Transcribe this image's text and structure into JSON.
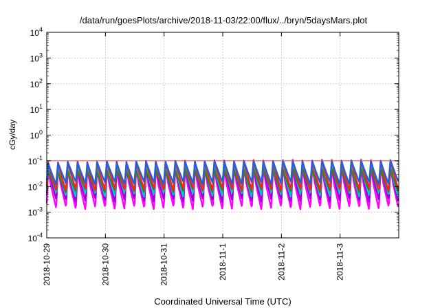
{
  "chart_data": {
    "type": "line",
    "title": "/data/run/goesPlots/archive/2018-11-03/22:00/flux/../bryn/5daysMars.plot",
    "xlabel": "Coordinated Universal Time (UTC)",
    "ylabel": "cGy/day",
    "yscale": "log",
    "ylim": [
      0.0001,
      10000
    ],
    "yticks": [
      {
        "base": "10",
        "exp": "4"
      },
      {
        "base": "10",
        "exp": "3"
      },
      {
        "base": "10",
        "exp": "2"
      },
      {
        "base": "10",
        "exp": "1"
      },
      {
        "base": "10",
        "exp": "0"
      },
      {
        "base": "10",
        "exp": "-1"
      },
      {
        "base": "10",
        "exp": "-2"
      },
      {
        "base": "10",
        "exp": "-3"
      },
      {
        "base": "10",
        "exp": "-4"
      }
    ],
    "xticks": [
      "2018-10-29",
      "2018-10-30",
      "2018-10-31",
      "2018-11-1",
      "2018-11-2",
      "2018-11-3"
    ],
    "xlim": [
      "2018-10-29",
      "2018-11-04"
    ],
    "grid": true,
    "orbit_cycles_per_day": 6,
    "reference_line": {
      "y": 0.1,
      "color": "#ff3b3b"
    },
    "series": [
      {
        "color": "#ff00ff",
        "peak": [
          0.045,
          0.06
        ],
        "trough": [
          0.0013,
          0.0018
        ]
      },
      {
        "color": "#9400d3",
        "peak": [
          0.06,
          0.08
        ],
        "trough": [
          0.0025,
          0.0035
        ]
      },
      {
        "color": "#00c8c8",
        "peak": [
          0.05,
          0.07
        ],
        "trough": [
          0.004,
          0.006
        ]
      },
      {
        "color": "#228b22",
        "peak": [
          0.035,
          0.05
        ],
        "trough": [
          0.006,
          0.008
        ]
      },
      {
        "color": "#ff2020",
        "peak": [
          0.085,
          0.11
        ],
        "trough": [
          0.007,
          0.009
        ]
      },
      {
        "color": "#2060e0",
        "peak": [
          0.08,
          0.105
        ],
        "trough": [
          0.012,
          0.016
        ]
      }
    ]
  }
}
